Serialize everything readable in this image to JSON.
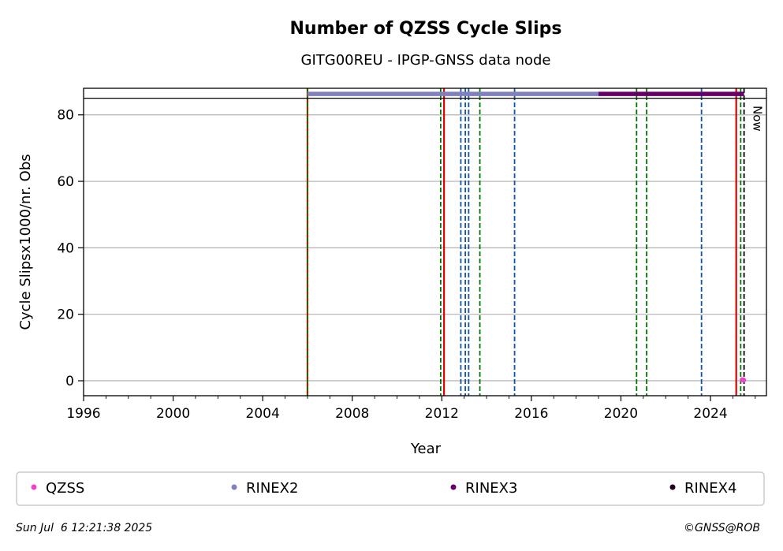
{
  "chart_data": {
    "type": "scatter",
    "title": "Number of QZSS Cycle Slips",
    "subtitle": "GITG00REU - IPGP-GNSS data node",
    "xlabel": "Year",
    "ylabel": "Cycle Slipsx1000/nr. Obs",
    "xlim": [
      1996,
      2026.5
    ],
    "ylim": [
      -4.5,
      88
    ],
    "x_ticks": [
      1996,
      2000,
      2004,
      2008,
      2012,
      2016,
      2020,
      2024
    ],
    "x_tick_labels": [
      "1996",
      "2000",
      "2004",
      "2008",
      "2012",
      "2016",
      "2020",
      "2024"
    ],
    "y_ticks": [
      0,
      20,
      40,
      60,
      80
    ],
    "y_tick_labels": [
      "0",
      "20",
      "40",
      "60",
      "80"
    ],
    "grid": "horizontal",
    "now_label": "Now",
    "now_x": 2025.5,
    "series": [
      {
        "name": "QZSS",
        "color": "#ee44cc",
        "points": [
          [
            2025.42,
            0.3
          ],
          [
            2025.48,
            0.2
          ]
        ]
      }
    ],
    "availability_bars": [
      {
        "name": "RINEX2",
        "color": "#8080bb",
        "start": 2006.0,
        "end": 2019.0,
        "y": 86.3
      },
      {
        "name": "RINEX3",
        "color": "#660066",
        "start": 2019.0,
        "end": 2025.5,
        "y": 86.3
      }
    ],
    "event_lines": [
      {
        "x": 2006.0,
        "color": "#dd0000",
        "style": "solid"
      },
      {
        "x": 2006.0,
        "color": "#007700",
        "style": "dashed"
      },
      {
        "x": 2011.95,
        "color": "#007700",
        "style": "dashed"
      },
      {
        "x": 2012.1,
        "color": "#dd0000",
        "style": "solid"
      },
      {
        "x": 2012.85,
        "color": "#1155aa",
        "style": "dashed"
      },
      {
        "x": 2013.05,
        "color": "#1155aa",
        "style": "dashed"
      },
      {
        "x": 2013.2,
        "color": "#1155aa",
        "style": "dashed"
      },
      {
        "x": 2013.7,
        "color": "#007700",
        "style": "dashed"
      },
      {
        "x": 2015.25,
        "color": "#1155aa",
        "style": "dashed"
      },
      {
        "x": 2020.7,
        "color": "#007700",
        "style": "dashed"
      },
      {
        "x": 2021.15,
        "color": "#007700",
        "style": "dashed"
      },
      {
        "x": 2023.6,
        "color": "#1155aa",
        "style": "dashed"
      },
      {
        "x": 2025.15,
        "color": "#dd0000",
        "style": "solid"
      },
      {
        "x": 2025.35,
        "color": "#007700",
        "style": "dashed"
      },
      {
        "x": 2025.5,
        "color": "#000000",
        "style": "dashed"
      }
    ],
    "legend": {
      "placement": "bottom",
      "entries": [
        {
          "label": "QZSS",
          "color": "#ee44cc"
        },
        {
          "label": "RINEX2",
          "color": "#8080bb"
        },
        {
          "label": "RINEX3",
          "color": "#660066"
        },
        {
          "label": "RINEX4",
          "color": "#220022"
        }
      ]
    },
    "footer_left": "Sun Jul  6 12:21:38 2025",
    "footer_right": "©GNSS@ROB"
  }
}
